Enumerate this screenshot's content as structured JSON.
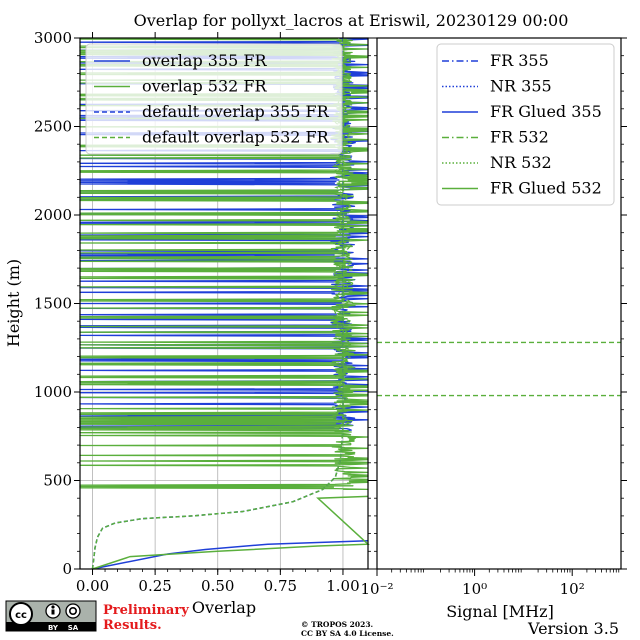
{
  "chart_data": [
    {
      "type": "line",
      "title": "Overlap for pollyxt_lacros at Eriswil, 20230129 00:00",
      "xlabel": "Overlap",
      "ylabel": "Height (m)",
      "xlim": [
        -0.05,
        1.1
      ],
      "ylim": [
        0,
        3000
      ],
      "x_ticks": [
        "0.00",
        "0.25",
        "0.50",
        "0.75",
        "1.00"
      ],
      "y_ticks": [
        "0",
        "500",
        "1000",
        "1500",
        "2000",
        "2500",
        "3000"
      ],
      "grid": true,
      "legend_position": "upper-left",
      "series": [
        {
          "name": "overlap 355 FR",
          "color": "#1f3fd8",
          "style": "solid",
          "note_points": [
            [
              0.0,
              0
            ],
            [
              0.3,
              85
            ],
            [
              0.45,
              110
            ],
            [
              0.7,
              140
            ],
            [
              1.1,
              160
            ]
          ]
        },
        {
          "name": "overlap 532 FR",
          "color": "#5aaf3c",
          "style": "solid",
          "note_points": [
            [
              0.0,
              0
            ],
            [
              0.15,
              70
            ],
            [
              0.5,
              100
            ],
            [
              0.9,
              130
            ],
            [
              1.1,
              140
            ],
            [
              0.9,
              400
            ],
            [
              1.1,
              410
            ]
          ]
        },
        {
          "name": "default overlap 355 FR",
          "color": "#1f3fd8",
          "style": "dashed",
          "points": [
            [
              0.0,
              0
            ],
            [
              0.005,
              60
            ],
            [
              0.01,
              120
            ],
            [
              0.02,
              180
            ],
            [
              0.04,
              230
            ],
            [
              0.09,
              260
            ],
            [
              0.2,
              285
            ],
            [
              0.4,
              300
            ],
            [
              0.6,
              325
            ],
            [
              0.8,
              380
            ],
            [
              0.92,
              450
            ],
            [
              0.97,
              520
            ],
            [
              0.99,
              620
            ],
            [
              1.0,
              800
            ],
            [
              1.0,
              3000
            ]
          ]
        },
        {
          "name": "default overlap 532 FR",
          "color": "#5aaf3c",
          "style": "dashed",
          "points": [
            [
              0.0,
              0
            ],
            [
              0.005,
              60
            ],
            [
              0.01,
              120
            ],
            [
              0.02,
              180
            ],
            [
              0.04,
              230
            ],
            [
              0.09,
              260
            ],
            [
              0.2,
              285
            ],
            [
              0.4,
              300
            ],
            [
              0.6,
              325
            ],
            [
              0.8,
              380
            ],
            [
              0.92,
              450
            ],
            [
              0.97,
              520
            ],
            [
              0.99,
              620
            ],
            [
              1.0,
              800
            ],
            [
              1.0,
              3000
            ]
          ]
        }
      ]
    },
    {
      "type": "line",
      "xlabel": "Signal [MHz]",
      "xscale": "log",
      "xlim": [
        0.01,
        1000
      ],
      "ylim": [
        0,
        3000
      ],
      "x_ticks": [
        "10⁻²",
        "10⁰",
        "10²"
      ],
      "legend_position": "upper-right",
      "series": [
        {
          "name": "FR 355",
          "color": "#1f3fd8",
          "style": "dashdot"
        },
        {
          "name": "NR 355",
          "color": "#1f3fd8",
          "style": "dotted"
        },
        {
          "name": "FR Glued 355",
          "color": "#1f3fd8",
          "style": "solid"
        },
        {
          "name": "FR 532",
          "color": "#5aaf3c",
          "style": "dashdot"
        },
        {
          "name": "NR 532",
          "color": "#5aaf3c",
          "style": "dotted"
        },
        {
          "name": "FR Glued 532",
          "color": "#5aaf3c",
          "style": "solid"
        }
      ],
      "hlines": [
        {
          "y": 1280,
          "color": "#5aaf3c",
          "style": "dashed"
        },
        {
          "y": 980,
          "color": "#5aaf3c",
          "style": "dashed"
        }
      ]
    }
  ],
  "footer": {
    "license_badge": "cc-by-sa-icon",
    "badge_by": "BY",
    "badge_sa": "SA",
    "preliminary_line1": "Preliminary",
    "preliminary_line2": "Results.",
    "copyright_line1": "© TROPOS 2023.",
    "copyright_line2": "CC BY SA 4.0 License.",
    "version": "Version 3.5"
  },
  "colors": {
    "blue": "#1f3fd8",
    "green": "#5aaf3c",
    "grid": "#b0b0b0",
    "prelim_red": "#e41a1c"
  }
}
